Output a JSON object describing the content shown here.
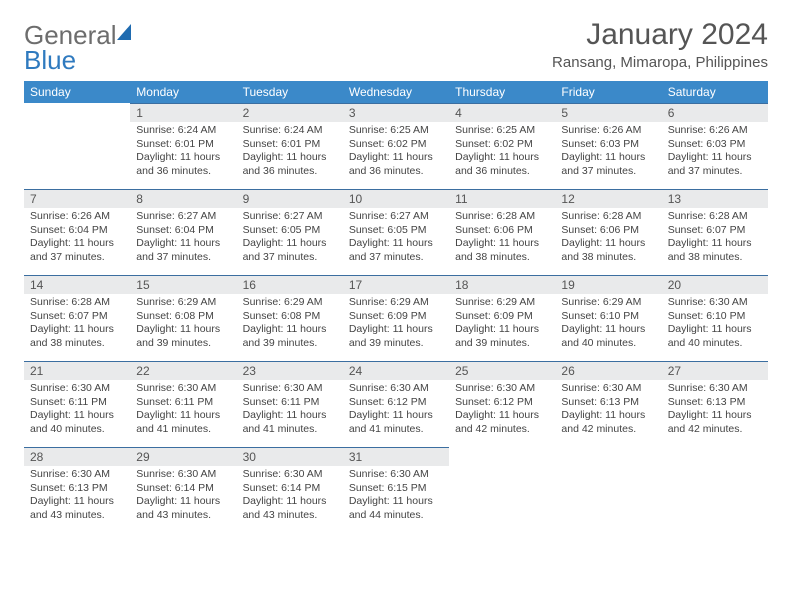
{
  "logo": {
    "word1": "General",
    "word2": "Blue"
  },
  "header": {
    "title": "January 2024",
    "location": "Ransang, Mimaropa, Philippines"
  },
  "colors": {
    "header_bg": "#3b89c9",
    "header_text": "#ffffff",
    "daynum_bg": "#e9eaeb",
    "daynum_border": "#3b6ea0",
    "body_text": "#444444",
    "logo_general": "#6d6d6d",
    "logo_blue": "#2f7abf"
  },
  "weekdays": [
    "Sunday",
    "Monday",
    "Tuesday",
    "Wednesday",
    "Thursday",
    "Friday",
    "Saturday"
  ],
  "weeks": [
    [
      null,
      {
        "n": "1",
        "sr": "6:24 AM",
        "ss": "6:01 PM",
        "dl": "11 hours and 36 minutes."
      },
      {
        "n": "2",
        "sr": "6:24 AM",
        "ss": "6:01 PM",
        "dl": "11 hours and 36 minutes."
      },
      {
        "n": "3",
        "sr": "6:25 AM",
        "ss": "6:02 PM",
        "dl": "11 hours and 36 minutes."
      },
      {
        "n": "4",
        "sr": "6:25 AM",
        "ss": "6:02 PM",
        "dl": "11 hours and 36 minutes."
      },
      {
        "n": "5",
        "sr": "6:26 AM",
        "ss": "6:03 PM",
        "dl": "11 hours and 37 minutes."
      },
      {
        "n": "6",
        "sr": "6:26 AM",
        "ss": "6:03 PM",
        "dl": "11 hours and 37 minutes."
      }
    ],
    [
      {
        "n": "7",
        "sr": "6:26 AM",
        "ss": "6:04 PM",
        "dl": "11 hours and 37 minutes."
      },
      {
        "n": "8",
        "sr": "6:27 AM",
        "ss": "6:04 PM",
        "dl": "11 hours and 37 minutes."
      },
      {
        "n": "9",
        "sr": "6:27 AM",
        "ss": "6:05 PM",
        "dl": "11 hours and 37 minutes."
      },
      {
        "n": "10",
        "sr": "6:27 AM",
        "ss": "6:05 PM",
        "dl": "11 hours and 37 minutes."
      },
      {
        "n": "11",
        "sr": "6:28 AM",
        "ss": "6:06 PM",
        "dl": "11 hours and 38 minutes."
      },
      {
        "n": "12",
        "sr": "6:28 AM",
        "ss": "6:06 PM",
        "dl": "11 hours and 38 minutes."
      },
      {
        "n": "13",
        "sr": "6:28 AM",
        "ss": "6:07 PM",
        "dl": "11 hours and 38 minutes."
      }
    ],
    [
      {
        "n": "14",
        "sr": "6:28 AM",
        "ss": "6:07 PM",
        "dl": "11 hours and 38 minutes."
      },
      {
        "n": "15",
        "sr": "6:29 AM",
        "ss": "6:08 PM",
        "dl": "11 hours and 39 minutes."
      },
      {
        "n": "16",
        "sr": "6:29 AM",
        "ss": "6:08 PM",
        "dl": "11 hours and 39 minutes."
      },
      {
        "n": "17",
        "sr": "6:29 AM",
        "ss": "6:09 PM",
        "dl": "11 hours and 39 minutes."
      },
      {
        "n": "18",
        "sr": "6:29 AM",
        "ss": "6:09 PM",
        "dl": "11 hours and 39 minutes."
      },
      {
        "n": "19",
        "sr": "6:29 AM",
        "ss": "6:10 PM",
        "dl": "11 hours and 40 minutes."
      },
      {
        "n": "20",
        "sr": "6:30 AM",
        "ss": "6:10 PM",
        "dl": "11 hours and 40 minutes."
      }
    ],
    [
      {
        "n": "21",
        "sr": "6:30 AM",
        "ss": "6:11 PM",
        "dl": "11 hours and 40 minutes."
      },
      {
        "n": "22",
        "sr": "6:30 AM",
        "ss": "6:11 PM",
        "dl": "11 hours and 41 minutes."
      },
      {
        "n": "23",
        "sr": "6:30 AM",
        "ss": "6:11 PM",
        "dl": "11 hours and 41 minutes."
      },
      {
        "n": "24",
        "sr": "6:30 AM",
        "ss": "6:12 PM",
        "dl": "11 hours and 41 minutes."
      },
      {
        "n": "25",
        "sr": "6:30 AM",
        "ss": "6:12 PM",
        "dl": "11 hours and 42 minutes."
      },
      {
        "n": "26",
        "sr": "6:30 AM",
        "ss": "6:13 PM",
        "dl": "11 hours and 42 minutes."
      },
      {
        "n": "27",
        "sr": "6:30 AM",
        "ss": "6:13 PM",
        "dl": "11 hours and 42 minutes."
      }
    ],
    [
      {
        "n": "28",
        "sr": "6:30 AM",
        "ss": "6:13 PM",
        "dl": "11 hours and 43 minutes."
      },
      {
        "n": "29",
        "sr": "6:30 AM",
        "ss": "6:14 PM",
        "dl": "11 hours and 43 minutes."
      },
      {
        "n": "30",
        "sr": "6:30 AM",
        "ss": "6:14 PM",
        "dl": "11 hours and 43 minutes."
      },
      {
        "n": "31",
        "sr": "6:30 AM",
        "ss": "6:15 PM",
        "dl": "11 hours and 44 minutes."
      },
      null,
      null,
      null
    ]
  ],
  "labels": {
    "sunrise": "Sunrise:",
    "sunset": "Sunset:",
    "daylight": "Daylight:"
  }
}
